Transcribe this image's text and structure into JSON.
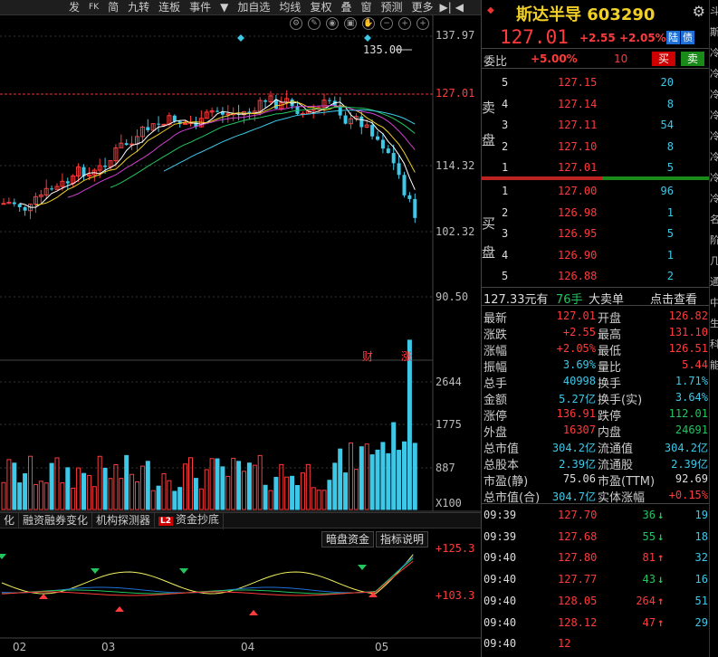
{
  "toolbar": {
    "items": [
      "发",
      "FK",
      "简",
      "九转",
      "连板",
      "事件",
      "▼",
      "加自选",
      "均线",
      "复权",
      "叠",
      "窗",
      "预测",
      "更多",
      "▶",
      "◀"
    ],
    "labels": {
      "fa": "发",
      "fk": "FK",
      "jian": "简",
      "jiuzhuan": "九转",
      "lianban": "连板",
      "shijian": "事件",
      "add_fav": "加自选",
      "junxian": "均线",
      "fuquan": "复权",
      "die": "叠",
      "chuang": "窗",
      "yuce": "预测",
      "gengduo": "更多"
    }
  },
  "price_axis": {
    "labels": [
      "137.97",
      "127.01",
      "114.32",
      "102.32",
      "90.50"
    ]
  },
  "peak_label": "135.00",
  "events": {
    "cai": "财",
    "zhang": "涨"
  },
  "volume_axis": {
    "labels": [
      "2644",
      "1775",
      "887",
      "X100"
    ]
  },
  "tabs": {
    "t1": "化",
    "t2": "融资融券变化",
    "t3": "机构探测器",
    "l2": "L2",
    "t4": "资金抄底"
  },
  "indicator": {
    "dark": "暗盘资金",
    "explain": "指标说明",
    "top": "+125.3",
    "low": "+103.3"
  },
  "months": [
    "02",
    "03",
    "04",
    "05"
  ],
  "stock": {
    "name": "斯达半导",
    "code": "603290",
    "price": "127.01",
    "change": "+2.55",
    "change_pct": "+2.05%",
    "tag1": "陆",
    "tag2": "债"
  },
  "weibi": {
    "label": "委比",
    "value": "+5.00%",
    "count": "10",
    "buy": "买",
    "sell": "卖"
  },
  "sell_side": {
    "label_top": "卖",
    "label_bot": "盘",
    "rows": [
      {
        "lvl": "5",
        "price": "127.15",
        "vol": "20"
      },
      {
        "lvl": "4",
        "price": "127.14",
        "vol": "8"
      },
      {
        "lvl": "3",
        "price": "127.11",
        "vol": "54"
      },
      {
        "lvl": "2",
        "price": "127.10",
        "vol": "8"
      },
      {
        "lvl": "1",
        "price": "127.01",
        "vol": "5"
      }
    ]
  },
  "buy_side": {
    "label_top": "买",
    "label_bot": "盘",
    "rows": [
      {
        "lvl": "1",
        "price": "127.00",
        "vol": "96"
      },
      {
        "lvl": "2",
        "price": "126.98",
        "vol": "1"
      },
      {
        "lvl": "3",
        "price": "126.95",
        "vol": "5"
      },
      {
        "lvl": "4",
        "price": "126.90",
        "vol": "1"
      },
      {
        "lvl": "5",
        "price": "126.88",
        "vol": "2"
      }
    ]
  },
  "big_order": {
    "amount": "127.33元有",
    "qty": "76手",
    "label": "大卖单",
    "action": "点击查看"
  },
  "stats": [
    {
      "l1": "最新",
      "v1": "127.01",
      "c1": "red",
      "l2": "开盘",
      "v2": "126.82",
      "c2": "red"
    },
    {
      "l1": "涨跌",
      "v1": "+2.55",
      "c1": "red",
      "l2": "最高",
      "v2": "131.10",
      "c2": "red"
    },
    {
      "l1": "涨幅",
      "v1": "+2.05%",
      "c1": "red",
      "l2": "最低",
      "v2": "126.51",
      "c2": "red"
    },
    {
      "l1": "振幅",
      "v1": "3.69%",
      "c1": "cyan",
      "l2": "量比",
      "v2": "5.44",
      "c2": "red"
    },
    {
      "l1": "总手",
      "v1": "40998",
      "c1": "cyan",
      "l2": "换手",
      "v2": "1.71%",
      "c2": "cyan"
    },
    {
      "l1": "金额",
      "v1": "5.27亿",
      "c1": "cyan",
      "l2": "换手(实)",
      "v2": "3.64%",
      "c2": "cyan"
    },
    {
      "l1": "涨停",
      "v1": "136.91",
      "c1": "red",
      "l2": "跌停",
      "v2": "112.01",
      "c2": "green"
    },
    {
      "l1": "外盘",
      "v1": "16307",
      "c1": "red",
      "l2": "内盘",
      "v2": "24691",
      "c2": "green"
    },
    {
      "l1": "总市值",
      "v1": "304.2亿",
      "c1": "cyan",
      "l2": "流通值",
      "v2": "304.2亿",
      "c2": "cyan"
    },
    {
      "l1": "总股本",
      "v1": "2.39亿",
      "c1": "cyan",
      "l2": "流通股",
      "v2": "2.39亿",
      "c2": "cyan"
    },
    {
      "l1": "市盈(静)",
      "v1": "75.06",
      "c1": "white",
      "l2": "市盈(TTM)",
      "v2": "92.69",
      "c2": "white"
    },
    {
      "l1": "总市值(合)",
      "v1": "304.7亿",
      "c1": "cyan",
      "l2": "实体涨幅",
      "v2": "+0.15%",
      "c2": "red"
    }
  ],
  "trades": [
    {
      "time": "09:39",
      "price": "127.70",
      "vol": "36",
      "dir": "down",
      "n": "19"
    },
    {
      "time": "09:39",
      "price": "127.68",
      "vol": "55",
      "dir": "down",
      "n": "18"
    },
    {
      "time": "09:40",
      "price": "127.80",
      "vol": "81",
      "dir": "up",
      "n": "32"
    },
    {
      "time": "09:40",
      "price": "127.77",
      "vol": "43",
      "dir": "down",
      "n": "16"
    },
    {
      "time": "09:40",
      "price": "128.05",
      "vol": "264",
      "dir": "up",
      "n": "51"
    },
    {
      "time": "09:40",
      "price": "128.12",
      "vol": "47",
      "dir": "up",
      "n": "29"
    },
    {
      "time": "09:40",
      "price": "12",
      "vol": "",
      "dir": "",
      "n": ""
    }
  ],
  "edge": [
    "斗",
    "斯",
    "冷",
    "冷",
    "冷",
    "冷",
    "冷",
    "冷",
    "冷",
    "冷",
    "名",
    "阶",
    "几",
    "通",
    "中",
    "生",
    "科",
    "能"
  ],
  "colors": {
    "up": "#ff3b3b",
    "down": "#22c55e",
    "cyan": "#3ec8e8",
    "gold": "#f0d028"
  }
}
